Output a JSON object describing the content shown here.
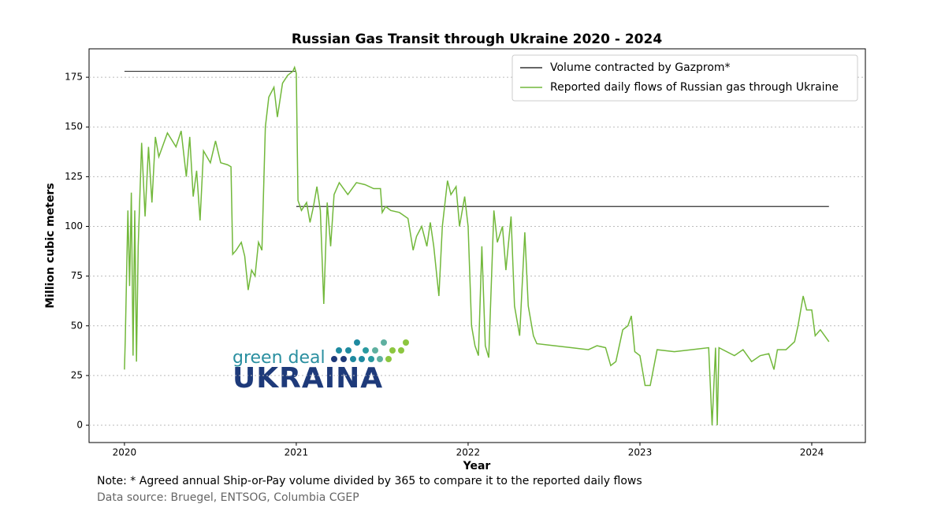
{
  "chart_data": {
    "type": "line",
    "title": "Russian Gas Transit through Ukraine 2020 - 2024",
    "xlabel": "Year",
    "ylabel": "Million cubic meters",
    "xlim": [
      2019.794,
      2024.312
    ],
    "xticks": [
      2020,
      2021,
      2022,
      2023,
      2024
    ],
    "ylim": [
      -8.7,
      189.3
    ],
    "yticks": [
      0,
      25,
      50,
      75,
      100,
      125,
      150,
      175
    ],
    "grid": true,
    "legend": "upper right",
    "series": [
      {
        "name": "Volume contracted by Gazprom*",
        "color": "#333333",
        "x": [
          2020,
          2021,
          2021,
          2021,
          2024.1
        ],
        "values": [
          178,
          178,
          null,
          110,
          110
        ]
      },
      {
        "name": "Reported daily flows of Russian gas through Ukraine",
        "color": "#72b83b",
        "x": [
          2020.0,
          2020.005,
          2020.02,
          2020.03,
          2020.04,
          2020.05,
          2020.06,
          2020.07,
          2020.08,
          2020.1,
          2020.12,
          2020.14,
          2020.16,
          2020.18,
          2020.2,
          2020.25,
          2020.3,
          2020.33,
          2020.36,
          2020.38,
          2020.4,
          2020.42,
          2020.44,
          2020.46,
          2020.5,
          2020.53,
          2020.56,
          2020.6,
          2020.62,
          2020.63,
          2020.65,
          2020.68,
          2020.7,
          2020.72,
          2020.74,
          2020.76,
          2020.78,
          2020.8,
          2020.82,
          2020.84,
          2020.87,
          2020.89,
          2020.92,
          2020.95,
          2020.98,
          2020.99,
          2021.0,
          2021.01,
          2021.03,
          2021.06,
          2021.08,
          2021.1,
          2021.12,
          2021.14,
          2021.16,
          2021.18,
          2021.2,
          2021.22,
          2021.25,
          2021.3,
          2021.35,
          2021.4,
          2021.45,
          2021.49,
          2021.5,
          2021.52,
          2021.55,
          2021.6,
          2021.65,
          2021.68,
          2021.7,
          2021.73,
          2021.76,
          2021.78,
          2021.8,
          2021.83,
          2021.85,
          2021.88,
          2021.9,
          2021.93,
          2021.95,
          2021.98,
          2022.0,
          2022.02,
          2022.04,
          2022.06,
          2022.08,
          2022.1,
          2022.12,
          2022.15,
          2022.17,
          2022.2,
          2022.22,
          2022.25,
          2022.27,
          2022.3,
          2022.33,
          2022.35,
          2022.38,
          2022.4,
          2022.5,
          2022.6,
          2022.7,
          2022.75,
          2022.8,
          2022.83,
          2022.86,
          2022.9,
          2022.93,
          2022.95,
          2022.97,
          2023.0,
          2023.03,
          2023.06,
          2023.1,
          2023.2,
          2023.3,
          2023.4,
          2023.42,
          2023.44,
          2023.45,
          2023.46,
          2023.55,
          2023.6,
          2023.65,
          2023.7,
          2023.75,
          2023.78,
          2023.8,
          2023.85,
          2023.9,
          2023.92,
          2023.95,
          2023.97,
          2024.0,
          2024.02,
          2024.05,
          2024.1
        ],
        "values": [
          28,
          44,
          108,
          70,
          117,
          35,
          108,
          32,
          90,
          142,
          105,
          140,
          112,
          145,
          135,
          147,
          140,
          148,
          125,
          145,
          115,
          128,
          103,
          138,
          132,
          143,
          132,
          131,
          130,
          86,
          88,
          92,
          85,
          68,
          78,
          75,
          92,
          88,
          150,
          165,
          170,
          155,
          172,
          176,
          178,
          180,
          177,
          113,
          108,
          112,
          102,
          110,
          120,
          108,
          61,
          112,
          90,
          116,
          122,
          116,
          122,
          121,
          119,
          119,
          107,
          110,
          108,
          107,
          104,
          88,
          95,
          100,
          90,
          102,
          90,
          65,
          100,
          123,
          116,
          120,
          100,
          115,
          100,
          50,
          40,
          35,
          90,
          40,
          34,
          108,
          92,
          100,
          78,
          105,
          60,
          45,
          97,
          60,
          45,
          41,
          40,
          39,
          38,
          40,
          39,
          30,
          32,
          48,
          50,
          55,
          37,
          35,
          20,
          20,
          38,
          37,
          38,
          39,
          0,
          39,
          0,
          39,
          35,
          38,
          32,
          35,
          36,
          28,
          38,
          38,
          42,
          50,
          65,
          58,
          58,
          45,
          48,
          42
        ]
      }
    ]
  },
  "note": "Note: * Agreed annual Ship-or-Pay volume divided by 365 to compare it to the reported daily flows",
  "source": "Data source: Bruegel, ENTSOG, Columbia CGEP",
  "logo": {
    "top": "green deal",
    "bottom": "UKRAINA"
  }
}
